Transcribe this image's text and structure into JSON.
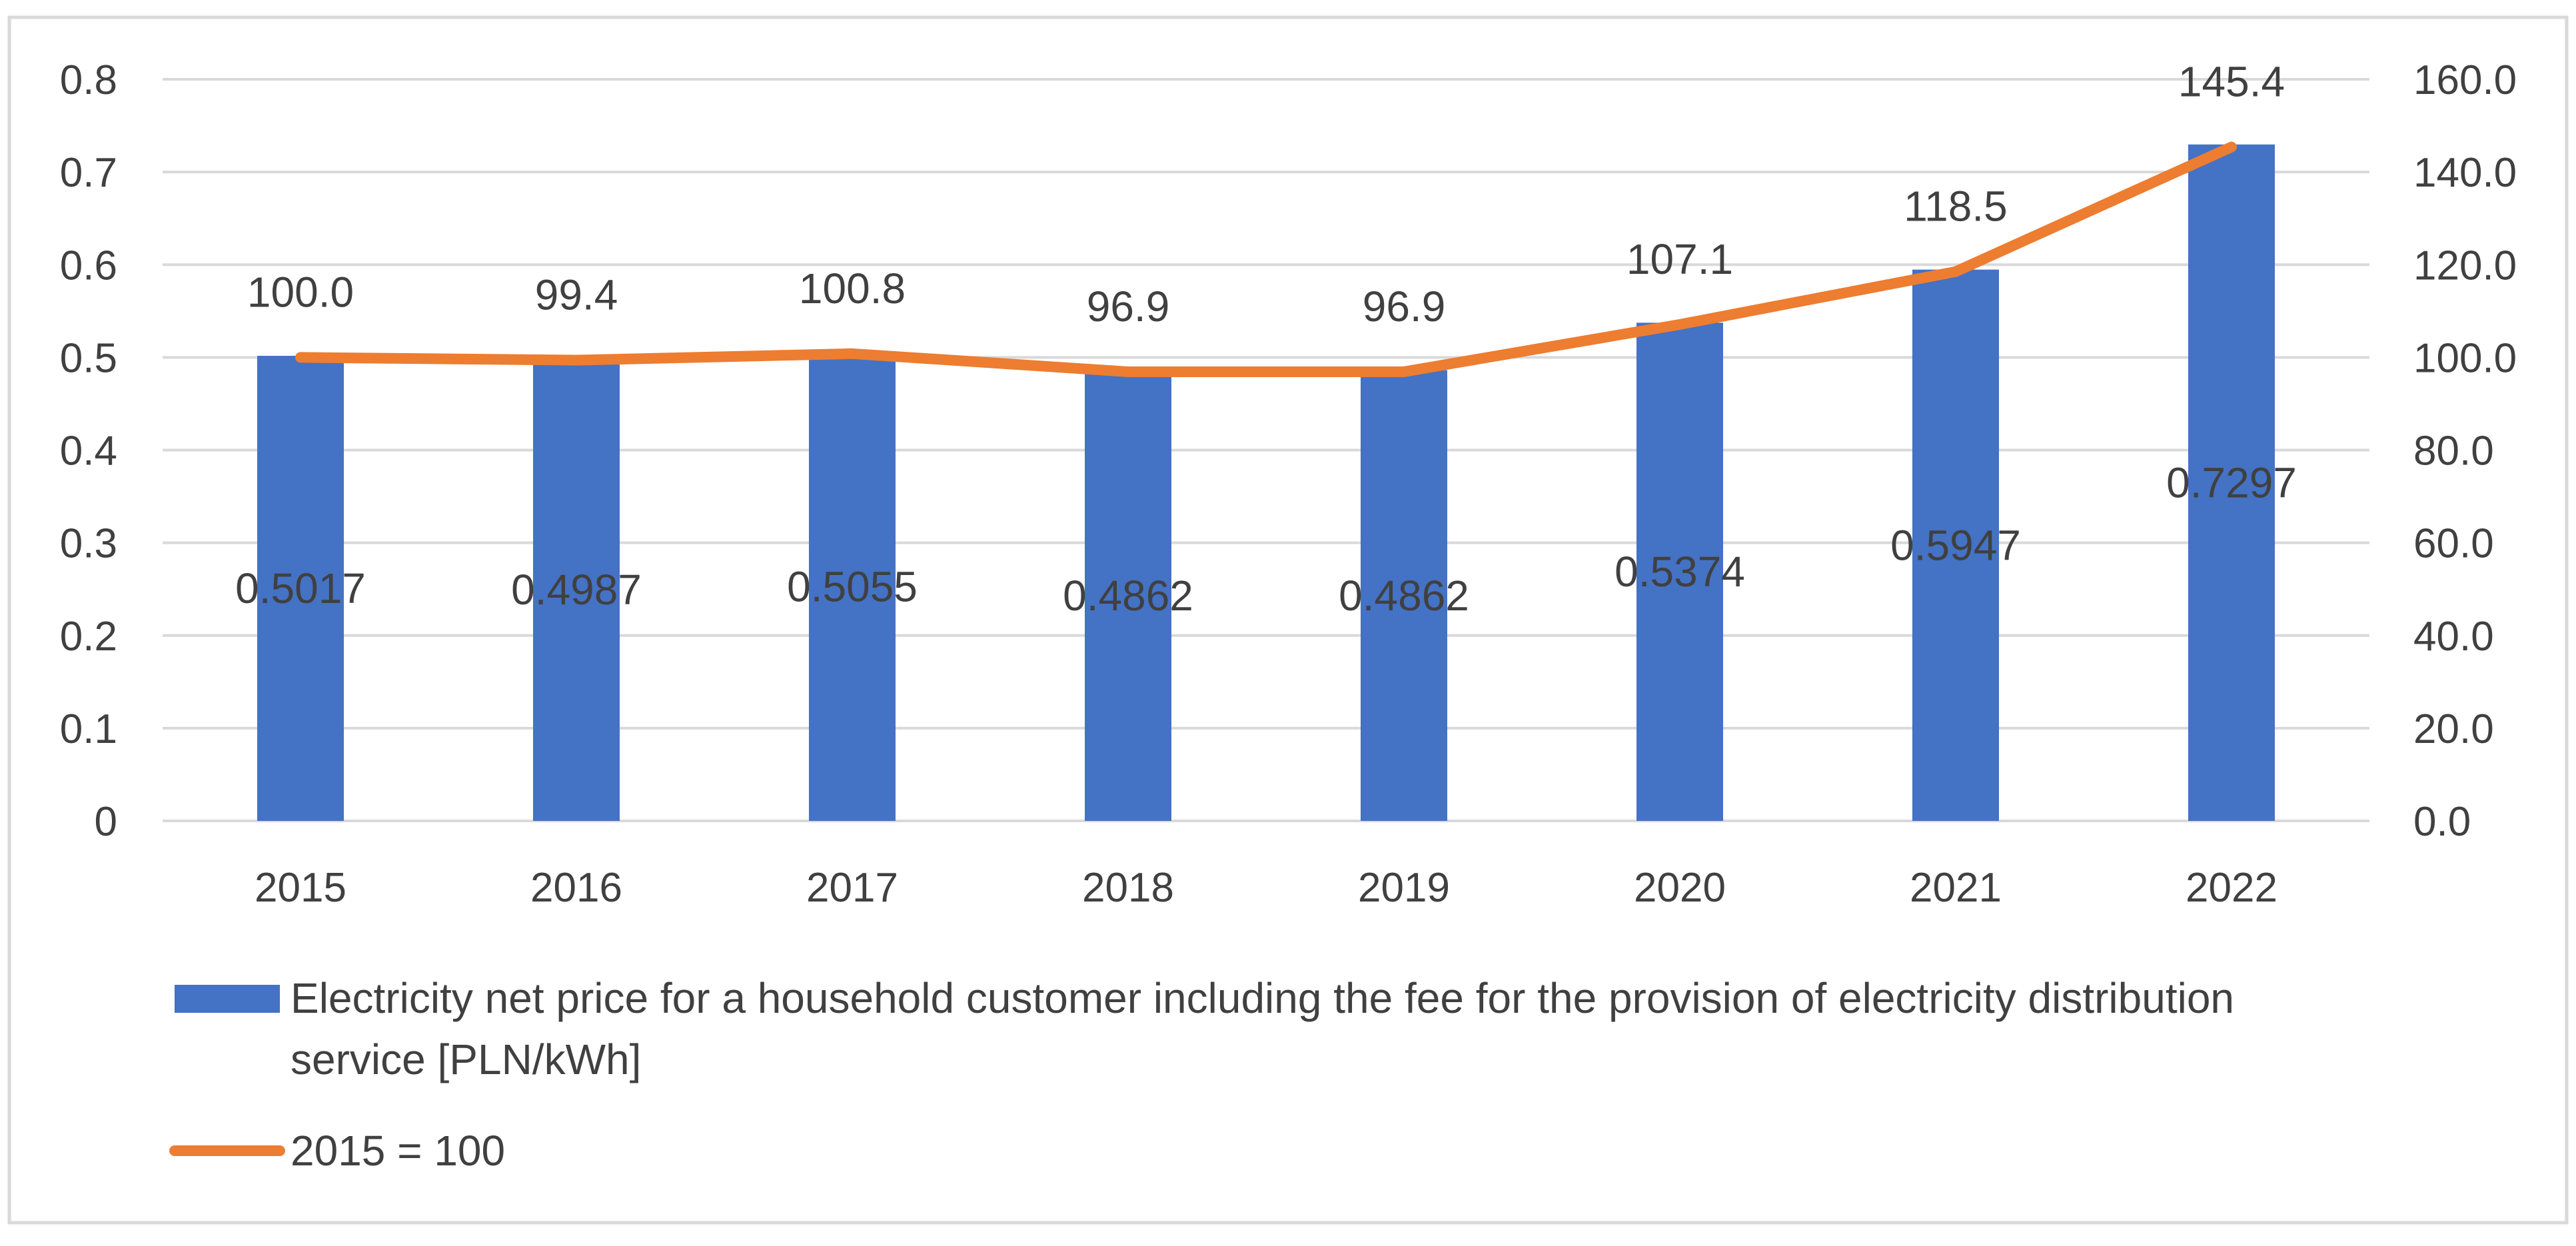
{
  "chart_data": {
    "type": "bar+line",
    "categories": [
      "2015",
      "2016",
      "2017",
      "2018",
      "2019",
      "2020",
      "2021",
      "2022"
    ],
    "series": [
      {
        "name": "Electricity net price for a household customer including the fee for the provision of electricity distribution service [PLN/kWh]",
        "legend_lines": [
          "Electricity net price for a household customer including the fee for the provision of electricity distribution",
          "service [PLN/kWh]"
        ],
        "type": "bar",
        "axis": "left",
        "values": [
          0.5017,
          0.4987,
          0.5055,
          0.4862,
          0.4862,
          0.5374,
          0.5947,
          0.7297
        ],
        "labels": [
          "0.5017",
          "0.4987",
          "0.5055",
          "0.4862",
          "0.4862",
          "0.5374",
          "0.5947",
          "0.7297"
        ],
        "color": "#4472C4"
      },
      {
        "name": "2015 = 100",
        "type": "line",
        "axis": "right",
        "values": [
          100.0,
          99.4,
          100.8,
          96.9,
          96.9,
          107.1,
          118.5,
          145.4
        ],
        "labels": [
          "100.0",
          "99.4",
          "100.8",
          "96.9",
          "96.9",
          "107.1",
          "118.5",
          "145.4"
        ],
        "color": "#ED7D31"
      }
    ],
    "y_left": {
      "min": 0,
      "max": 0.8,
      "ticks": [
        "0",
        "0.1",
        "0.2",
        "0.3",
        "0.4",
        "0.5",
        "0.6",
        "0.7",
        "0.8"
      ]
    },
    "y_right": {
      "min": 0,
      "max": 160,
      "ticks": [
        "0.0",
        "20.0",
        "40.0",
        "60.0",
        "80.0",
        "100.0",
        "120.0",
        "140.0",
        "160.0"
      ]
    },
    "grid": true,
    "legend_position": "bottom",
    "colors": {
      "gridline": "#D9D9D9",
      "text": "#404040",
      "border": "#D9D9D9"
    }
  }
}
